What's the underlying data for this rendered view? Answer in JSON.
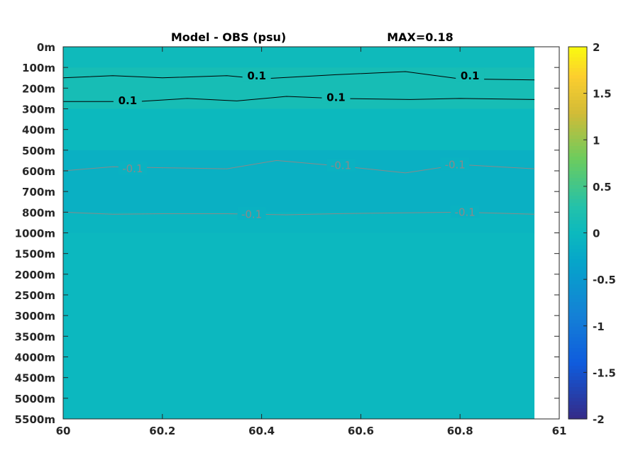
{
  "title_left": "Model - OBS (psu)",
  "title_right": "MAX=0.18",
  "chart_data": {
    "type": "heatmap",
    "x": {
      "lim": [
        60,
        61
      ],
      "ticks": [
        60,
        60.2,
        60.4,
        60.6,
        60.8,
        61
      ],
      "tick_labels": [
        "60",
        "60.2",
        "60.4",
        "60.6",
        "60.8",
        "61"
      ],
      "data_extent": [
        60,
        60.95
      ]
    },
    "y": {
      "tick_labels": [
        "0m",
        "100m",
        "200m",
        "300m",
        "400m",
        "500m",
        "600m",
        "700m",
        "800m",
        "1000m",
        "1500m",
        "2000m",
        "2500m",
        "3000m",
        "3500m",
        "4000m",
        "4500m",
        "5000m",
        "5500m"
      ],
      "depths": [
        0,
        100,
        200,
        300,
        400,
        500,
        600,
        700,
        800,
        1000,
        1500,
        2000,
        2500,
        3000,
        3500,
        4000,
        4500,
        5000,
        5500
      ],
      "reversed": true
    },
    "colorbar": {
      "lim": [
        -2,
        2
      ],
      "ticks": [
        2,
        1.5,
        1,
        0.5,
        0,
        -0.5,
        -1,
        -1.5,
        -2
      ],
      "tick_labels": [
        "2",
        "1.5",
        "1",
        "0.5",
        "0",
        "-0.5",
        "-1",
        "-1.5",
        "-2"
      ],
      "colormap": "parula"
    },
    "field_levels": [
      {
        "depth_from": 0,
        "depth_to": 100,
        "value": 0.04
      },
      {
        "depth_from": 100,
        "depth_to": 300,
        "value": 0.13
      },
      {
        "depth_from": 300,
        "depth_to": 500,
        "value": 0.0
      },
      {
        "depth_from": 500,
        "depth_to": 800,
        "value": -0.13
      },
      {
        "depth_from": 800,
        "depth_to": 1000,
        "value": -0.06
      },
      {
        "depth_from": 1000,
        "depth_to": 5500,
        "value": -0.02
      }
    ],
    "contours": [
      {
        "level": 0.1,
        "label": "0.1",
        "color": "#000000",
        "x": [
          60.0,
          60.1,
          60.2,
          60.33,
          60.4,
          60.55,
          60.69,
          60.8,
          60.95
        ],
        "depth": [
          150,
          140,
          150,
          140,
          155,
          135,
          120,
          155,
          160
        ],
        "label_positions": [
          [
            60.39,
            140
          ],
          [
            60.82,
            140
          ]
        ]
      },
      {
        "level": 0.1,
        "label": "0.1",
        "color": "#000000",
        "x": [
          60.0,
          60.15,
          60.25,
          60.35,
          60.45,
          60.55,
          60.7,
          60.8,
          60.95
        ],
        "depth": [
          265,
          265,
          250,
          262,
          240,
          250,
          255,
          250,
          255
        ],
        "label_positions": [
          [
            60.13,
            260
          ],
          [
            60.55,
            245
          ]
        ]
      },
      {
        "level": -0.1,
        "label": "-0.1",
        "color": "#8a8a8a",
        "x": [
          60.0,
          60.1,
          60.2,
          60.33,
          60.43,
          60.55,
          60.69,
          60.8,
          60.95
        ],
        "depth": [
          600,
          580,
          585,
          590,
          550,
          575,
          610,
          570,
          590
        ],
        "label_positions": [
          [
            60.14,
            590
          ],
          [
            60.56,
            575
          ],
          [
            60.79,
            570
          ]
        ]
      },
      {
        "level": -0.1,
        "label": "-0.1",
        "color": "#8a8a8a",
        "x": [
          60.0,
          60.1,
          60.2,
          60.33,
          60.45,
          60.55,
          60.7,
          60.8,
          60.95
        ],
        "depth": [
          800,
          820,
          815,
          815,
          825,
          815,
          805,
          800,
          820
        ],
        "label_positions": [
          [
            60.38,
            820
          ],
          [
            60.81,
            800
          ]
        ]
      }
    ]
  }
}
